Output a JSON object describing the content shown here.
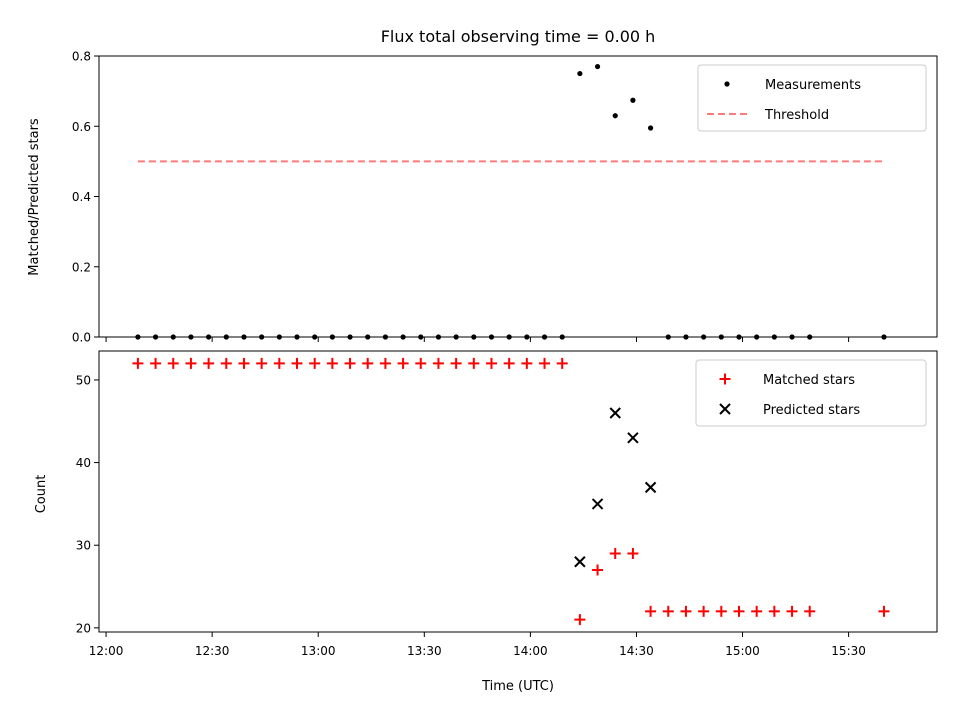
{
  "title": "Flux total observing time = 0.00 h",
  "xlabel": "Time (UTC)",
  "x_ticks": [
    "12:00",
    "12:30",
    "13:00",
    "13:30",
    "14:00",
    "14:30",
    "15:00",
    "15:30"
  ],
  "chart_data": [
    {
      "type": "scatter",
      "panel": "top",
      "ylabel": "Matched/Predicted stars",
      "ylim": [
        0,
        0.8
      ],
      "y_ticks": [
        "0.0",
        "0.2",
        "0.4",
        "0.6",
        "0.8"
      ],
      "xlim": [
        "11:58",
        "15:55"
      ],
      "legend_position": "upper-right",
      "series": [
        {
          "name": "Measurements",
          "marker": "dot",
          "color": "#000000",
          "x": [
            "12:09",
            "12:14",
            "12:19",
            "12:24",
            "12:29",
            "12:34",
            "12:39",
            "12:44",
            "12:49",
            "12:54",
            "12:59",
            "13:04",
            "13:09",
            "13:14",
            "13:19",
            "13:24",
            "13:29",
            "13:34",
            "13:39",
            "13:44",
            "13:49",
            "13:54",
            "13:59",
            "14:04",
            "14:09",
            "14:14",
            "14:19",
            "14:24",
            "14:29",
            "14:34",
            "14:39",
            "14:44",
            "14:49",
            "14:54",
            "14:59",
            "15:04",
            "15:09",
            "15:14",
            "15:19",
            "15:40"
          ],
          "y": [
            0,
            0,
            0,
            0,
            0,
            0,
            0,
            0,
            0,
            0,
            0,
            0,
            0,
            0,
            0,
            0,
            0,
            0,
            0,
            0,
            0,
            0,
            0,
            0,
            0,
            0.75,
            0.77,
            0.63,
            0.674,
            0.595,
            0,
            0,
            0,
            0,
            0,
            0,
            0,
            0,
            0,
            0
          ]
        },
        {
          "name": "Threshold",
          "marker": "dashed-line",
          "color": "#ff7a7a",
          "x": [
            "12:09",
            "15:40"
          ],
          "y": [
            0.5,
            0.5
          ]
        }
      ]
    },
    {
      "type": "scatter",
      "panel": "bottom",
      "ylabel": "Count",
      "ylim": [
        19.5,
        53.5
      ],
      "y_ticks": [
        "20",
        "30",
        "40",
        "50"
      ],
      "xlim": [
        "11:58",
        "15:55"
      ],
      "legend_position": "upper-right",
      "series": [
        {
          "name": "Matched stars",
          "marker": "plus",
          "color": "#ff0000",
          "x": [
            "12:09",
            "12:14",
            "12:19",
            "12:24",
            "12:29",
            "12:34",
            "12:39",
            "12:44",
            "12:49",
            "12:54",
            "12:59",
            "13:04",
            "13:09",
            "13:14",
            "13:19",
            "13:24",
            "13:29",
            "13:34",
            "13:39",
            "13:44",
            "13:49",
            "13:54",
            "13:59",
            "14:04",
            "14:09",
            "14:14",
            "14:19",
            "14:24",
            "14:29",
            "14:34",
            "14:39",
            "14:44",
            "14:49",
            "14:54",
            "14:59",
            "15:04",
            "15:09",
            "15:14",
            "15:19",
            "15:40"
          ],
          "y": [
            52,
            52,
            52,
            52,
            52,
            52,
            52,
            52,
            52,
            52,
            52,
            52,
            52,
            52,
            52,
            52,
            52,
            52,
            52,
            52,
            52,
            52,
            52,
            52,
            52,
            21,
            27,
            29,
            29,
            22,
            22,
            22,
            22,
            22,
            22,
            22,
            22,
            22,
            22,
            22
          ]
        },
        {
          "name": "Predicted stars",
          "marker": "x",
          "color": "#000000",
          "x": [
            "14:14",
            "14:19",
            "14:24",
            "14:29",
            "14:34"
          ],
          "y": [
            28,
            35,
            46,
            43,
            37
          ]
        }
      ]
    }
  ]
}
